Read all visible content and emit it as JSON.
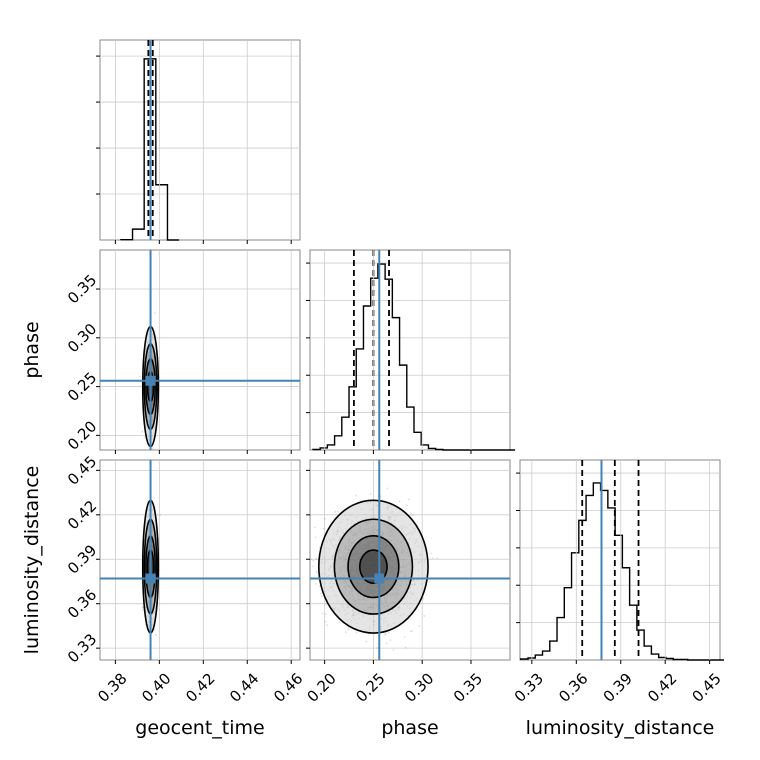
{
  "chart_data": {
    "type": "corner",
    "parameters": [
      "geocent_time",
      "phase",
      "luminosity_distance"
    ],
    "truths": {
      "geocent_time": 0.396,
      "phase": 0.256,
      "luminosity_distance": 0.377
    },
    "quantiles": {
      "geocent_time": [
        0.395,
        0.396,
        0.397
      ],
      "phase": [
        0.23,
        0.25,
        0.266
      ],
      "luminosity_distance": [
        0.364,
        0.386,
        0.402
      ]
    },
    "grid": true,
    "colors": {
      "truth": "#4682b4",
      "hist": "#000000",
      "quantile": "#000000",
      "samples": "#000000"
    },
    "panels": {
      "geocent_time_hist": {
        "xlim": [
          0.373,
          0.464
        ],
        "xticks": [
          0.38,
          0.4,
          0.42,
          0.44,
          0.46
        ],
        "bins": [
          {
            "x0": 0.3825,
            "x1": 0.3878,
            "count": 2
          },
          {
            "x0": 0.3878,
            "x1": 0.3931,
            "count": 60
          },
          {
            "x0": 0.3931,
            "x1": 0.3984,
            "count": 1000
          },
          {
            "x0": 0.3984,
            "x1": 0.4037,
            "count": 305
          },
          {
            "x0": 0.4037,
            "x1": 0.409,
            "count": 0
          }
        ],
        "ymax": 1060
      },
      "phase_hist": {
        "xlim": [
          0.185,
          0.39
        ],
        "xticks": [
          0.2,
          0.25,
          0.3,
          0.35
        ],
        "bin_start": 0.188,
        "bin_width": 0.0074,
        "counts": [
          1,
          4,
          10,
          28,
          65,
          125,
          200,
          285,
          340,
          368,
          338,
          262,
          168,
          85,
          35,
          10,
          3,
          1,
          0,
          0,
          0,
          0,
          0,
          0,
          0,
          0,
          0,
          0
        ],
        "ymax": 380
      },
      "luminosity_distance_hist": {
        "xlim": [
          0.322,
          0.457
        ],
        "xticks": [
          0.33,
          0.36,
          0.39,
          0.42,
          0.45
        ],
        "bin_start": 0.3225,
        "bin_width": 0.0049,
        "counts": [
          2,
          4,
          10,
          18,
          38,
          85,
          145,
          215,
          280,
          330,
          355,
          340,
          305,
          250,
          185,
          110,
          60,
          28,
          12,
          5,
          3,
          1,
          1,
          0,
          0,
          0,
          0,
          0
        ],
        "ymax": 385
      },
      "phase_vs_geocent_time": {
        "xlim": [
          0.373,
          0.464
        ],
        "ylim": [
          0.185,
          0.39
        ],
        "yticks": [
          0.2,
          0.25,
          0.3,
          0.35
        ],
        "center": [
          0.396,
          0.25
        ],
        "spread": [
          0.0012,
          0.022
        ],
        "contour_radii": [
          0.7,
          1.3,
          2.0,
          2.8
        ]
      },
      "luminosity_distance_vs_geocent_time": {
        "xlim": [
          0.373,
          0.464
        ],
        "ylim": [
          0.322,
          0.457
        ],
        "yticks": [
          0.33,
          0.36,
          0.39,
          0.42,
          0.45
        ],
        "center": [
          0.396,
          0.385
        ],
        "spread": [
          0.0012,
          0.016
        ],
        "contour_radii": [
          0.7,
          1.3,
          2.0,
          2.8
        ]
      },
      "luminosity_distance_vs_phase": {
        "xlim": [
          0.185,
          0.39
        ],
        "ylim": [
          0.322,
          0.457
        ],
        "center": [
          0.25,
          0.385
        ],
        "spread": [
          0.02,
          0.016
        ],
        "contour_radii": [
          0.7,
          1.3,
          2.0,
          2.8
        ]
      }
    }
  }
}
